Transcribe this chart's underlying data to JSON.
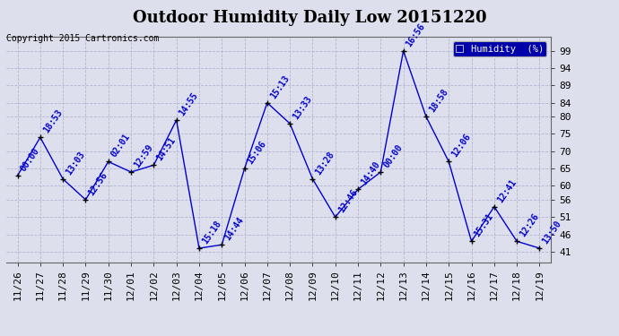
{
  "title": "Outdoor Humidity Daily Low 20151220",
  "copyright": "Copyright 2015 Cartronics.com",
  "legend_label": "Humidity  (%)",
  "x_labels": [
    "11/26",
    "11/27",
    "11/28",
    "11/29",
    "11/30",
    "12/01",
    "12/02",
    "12/03",
    "12/04",
    "12/05",
    "12/06",
    "12/07",
    "12/08",
    "12/09",
    "12/10",
    "12/11",
    "12/12",
    "12/13",
    "12/14",
    "12/15",
    "12/16",
    "12/17",
    "12/18",
    "12/19"
  ],
  "y_values": [
    63,
    74,
    62,
    56,
    67,
    64,
    66,
    79,
    42,
    43,
    65,
    84,
    78,
    62,
    51,
    59,
    64,
    99,
    80,
    67,
    44,
    54,
    44,
    42
  ],
  "time_labels": [
    "00:00",
    "18:53",
    "13:03",
    "12:56",
    "02:01",
    "12:59",
    "14:51",
    "14:55",
    "15:18",
    "14:44",
    "15:06",
    "15:13",
    "13:33",
    "13:28",
    "12:46",
    "14:40",
    "00:00",
    "16:56",
    "18:58",
    "12:06",
    "15:31",
    "12:41",
    "12:26",
    "13:50"
  ],
  "y_ticks": [
    41,
    46,
    51,
    56,
    60,
    65,
    70,
    75,
    80,
    84,
    89,
    94,
    99
  ],
  "ylim": [
    38,
    103
  ],
  "line_color": "#0000cc",
  "marker_color": "#000000",
  "bg_color": "#dde0ec",
  "plot_bg_color": "#dde0ec",
  "grid_color": "#aaaacc",
  "title_fontsize": 13,
  "tick_fontsize": 8,
  "annotation_fontsize": 7,
  "legend_bg": "#0000aa",
  "legend_fg": "#ffffff",
  "copyright_fontsize": 7
}
